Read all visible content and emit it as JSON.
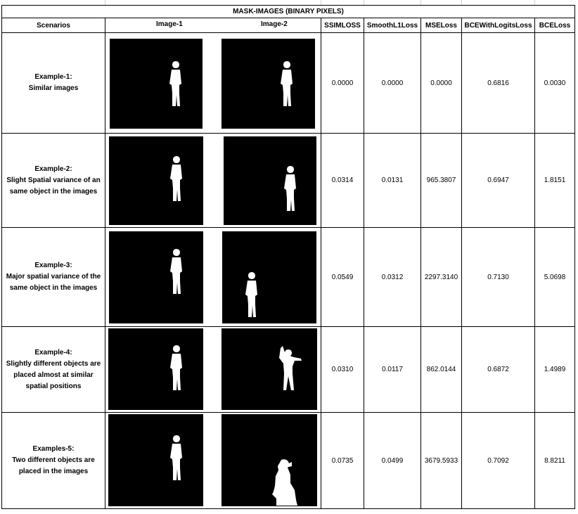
{
  "table": {
    "title": "MASK-IMAGES (BINARY PIXELS)",
    "headers": {
      "scenarios": "Scenarios",
      "image1": "Image-1",
      "image2": "Image-2",
      "ssim": "SSIMLOSS",
      "smoothl1": "SmoothL1Loss",
      "mse": "MSELoss",
      "bcelogits": "BCEWithLogitsLoss",
      "bce": "BCELoss"
    },
    "rows": [
      {
        "label_line1": "Example-1:",
        "label_rest": "Similar images",
        "image1_icon": "standing-person-silhouette-mask",
        "image2_icon": "standing-person-silhouette-mask",
        "ssim": "0.0000",
        "smoothl1": "0.0000",
        "mse": "0.0000",
        "bcelogits": "0.6816",
        "bce": "0.0030"
      },
      {
        "label_line1": "Example-2:",
        "label_rest": "Slight Spatial variance of an same object in the images",
        "image1_icon": "standing-person-silhouette-mask",
        "image2_icon": "standing-person-silhouette-mask-shifted",
        "ssim": "0.0314",
        "smoothl1": "0.0131",
        "mse": "965.3807",
        "bcelogits": "0.6947",
        "bce": "1.8151"
      },
      {
        "label_line1": "Example-3:",
        "label_rest": "Major spatial variance of the same object in the images",
        "image1_icon": "standing-person-silhouette-mask",
        "image2_icon": "standing-person-silhouette-mask-far-shifted",
        "ssim": "0.0549",
        "smoothl1": "0.0312",
        "mse": "2297.3140",
        "bcelogits": "0.7130",
        "bce": "5.0698"
      },
      {
        "label_line1": "Example-4:",
        "label_rest": "Slightly different objects are placed almost at similar spatial positions",
        "image1_icon": "standing-person-silhouette-mask",
        "image2_icon": "person-with-raised-arms-silhouette-mask",
        "ssim": "0.0310",
        "smoothl1": "0.0117",
        "mse": "862.0144",
        "bcelogits": "0.6872",
        "bce": "1.4989"
      },
      {
        "label_line1": "Examples-5:",
        "label_rest": "Two different objects are placed in the images",
        "image1_icon": "standing-person-silhouette-mask",
        "image2_icon": "person-taking-photo-silhouette-mask",
        "ssim": "0.0735",
        "smoothl1": "0.0499",
        "mse": "3679.5933",
        "bcelogits": "0.7092",
        "bce": "8.8211"
      }
    ]
  }
}
